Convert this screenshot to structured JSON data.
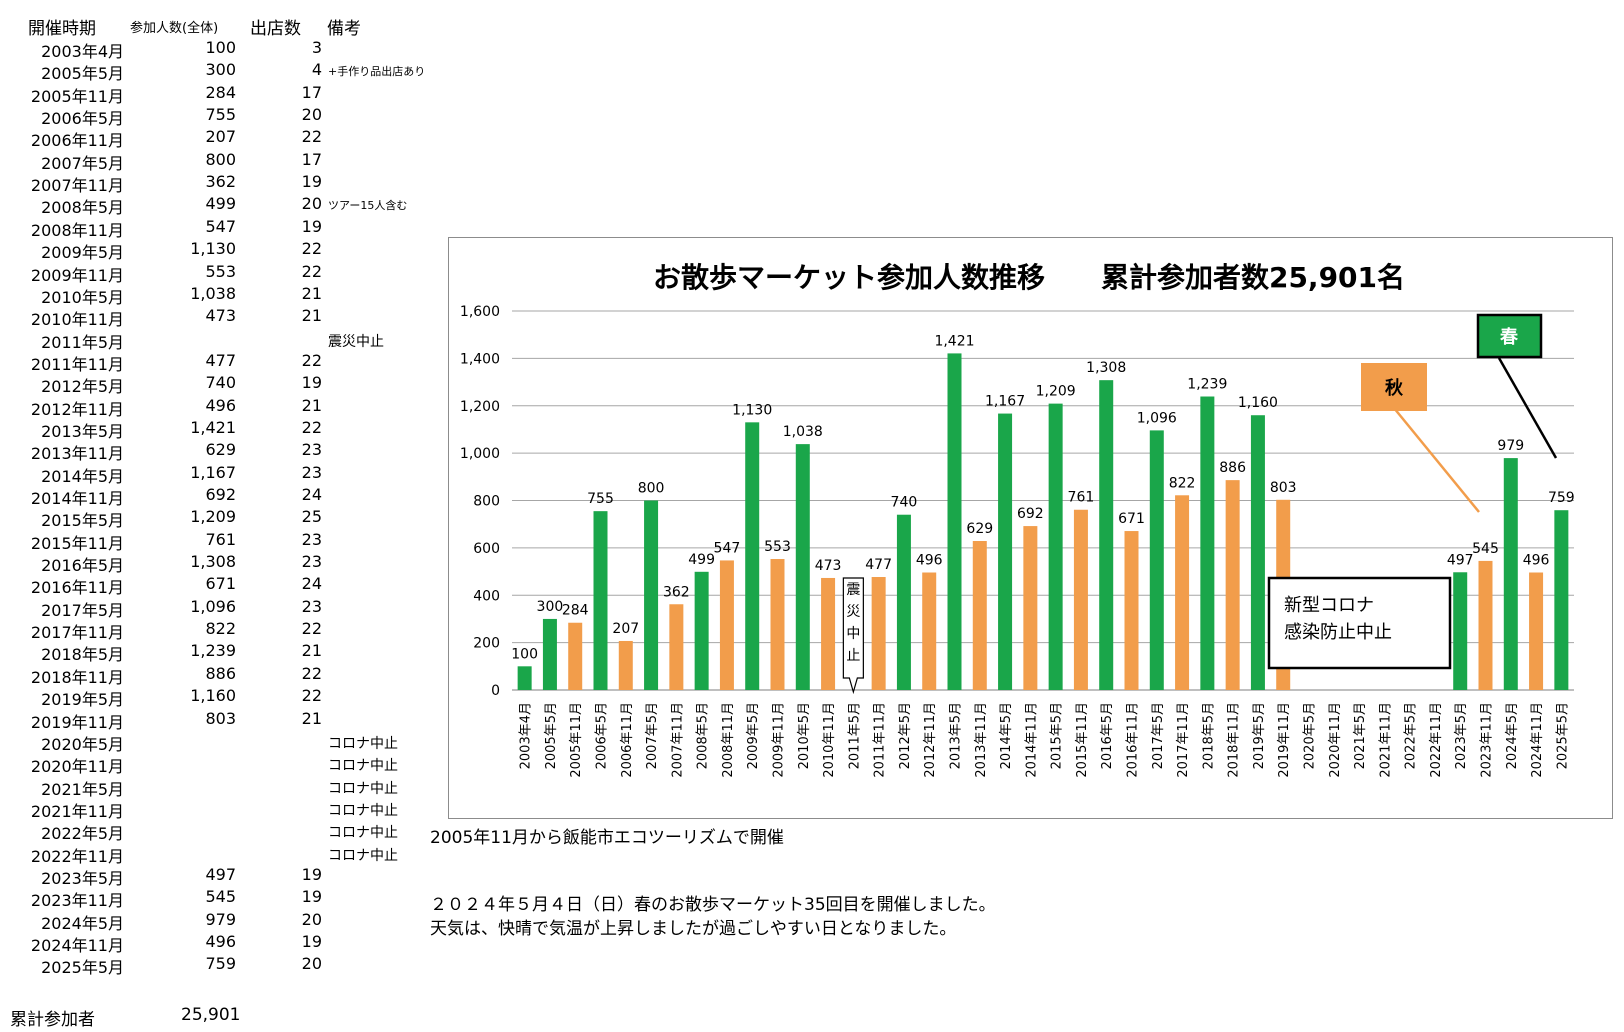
{
  "table": {
    "headers": {
      "period": "開催時期",
      "count": "参加人数(全体)",
      "stores": "出店数",
      "notes": "備考"
    },
    "rows": [
      {
        "date": "2003年4月",
        "count": "100",
        "stores": "3",
        "note": ""
      },
      {
        "date": "2005年5月",
        "count": "300",
        "stores": "4",
        "note": "+手作り品出店あり"
      },
      {
        "date": "2005年11月",
        "count": "284",
        "stores": "17",
        "note": ""
      },
      {
        "date": "2006年5月",
        "count": "755",
        "stores": "20",
        "note": ""
      },
      {
        "date": "2006年11月",
        "count": "207",
        "stores": "22",
        "note": ""
      },
      {
        "date": "2007年5月",
        "count": "800",
        "stores": "17",
        "note": ""
      },
      {
        "date": "2007年11月",
        "count": "362",
        "stores": "19",
        "note": ""
      },
      {
        "date": "2008年5月",
        "count": "499",
        "stores": "20",
        "note": "ツアー15人含む"
      },
      {
        "date": "2008年11月",
        "count": "547",
        "stores": "19",
        "note": ""
      },
      {
        "date": "2009年5月",
        "count": "1,130",
        "stores": "22",
        "note": ""
      },
      {
        "date": "2009年11月",
        "count": "553",
        "stores": "22",
        "note": ""
      },
      {
        "date": "2010年5月",
        "count": "1,038",
        "stores": "21",
        "note": ""
      },
      {
        "date": "2010年11月",
        "count": "473",
        "stores": "21",
        "note": ""
      },
      {
        "date": "2011年5月",
        "count": "",
        "stores": "",
        "note": "震災中止"
      },
      {
        "date": "2011年11月",
        "count": "477",
        "stores": "22",
        "note": ""
      },
      {
        "date": "2012年5月",
        "count": "740",
        "stores": "19",
        "note": ""
      },
      {
        "date": "2012年11月",
        "count": "496",
        "stores": "21",
        "note": ""
      },
      {
        "date": "2013年5月",
        "count": "1,421",
        "stores": "22",
        "note": ""
      },
      {
        "date": "2013年11月",
        "count": "629",
        "stores": "23",
        "note": ""
      },
      {
        "date": "2014年5月",
        "count": "1,167",
        "stores": "23",
        "note": ""
      },
      {
        "date": "2014年11月",
        "count": "692",
        "stores": "24",
        "note": ""
      },
      {
        "date": "2015年5月",
        "count": "1,209",
        "stores": "25",
        "note": ""
      },
      {
        "date": "2015年11月",
        "count": "761",
        "stores": "23",
        "note": ""
      },
      {
        "date": "2016年5月",
        "count": "1,308",
        "stores": "23",
        "note": ""
      },
      {
        "date": "2016年11月",
        "count": "671",
        "stores": "24",
        "note": ""
      },
      {
        "date": "2017年5月",
        "count": "1,096",
        "stores": "23",
        "note": ""
      },
      {
        "date": "2017年11月",
        "count": "822",
        "stores": "22",
        "note": ""
      },
      {
        "date": "2018年5月",
        "count": "1,239",
        "stores": "21",
        "note": ""
      },
      {
        "date": "2018年11月",
        "count": "886",
        "stores": "22",
        "note": ""
      },
      {
        "date": "2019年5月",
        "count": "1,160",
        "stores": "22",
        "note": ""
      },
      {
        "date": "2019年11月",
        "count": "803",
        "stores": "21",
        "note": ""
      },
      {
        "date": "2020年5月",
        "count": "",
        "stores": "",
        "note": "コロナ中止"
      },
      {
        "date": "2020年11月",
        "count": "",
        "stores": "",
        "note": "コロナ中止"
      },
      {
        "date": "2021年5月",
        "count": "",
        "stores": "",
        "note": "コロナ中止"
      },
      {
        "date": "2021年11月",
        "count": "",
        "stores": "",
        "note": "コロナ中止"
      },
      {
        "date": "2022年5月",
        "count": "",
        "stores": "",
        "note": "コロナ中止"
      },
      {
        "date": "2022年11月",
        "count": "",
        "stores": "",
        "note": "コロナ中止"
      },
      {
        "date": "2023年5月",
        "count": "497",
        "stores": "19",
        "note": ""
      },
      {
        "date": "2023年11月",
        "count": "545",
        "stores": "19",
        "note": ""
      },
      {
        "date": "2024年5月",
        "count": "979",
        "stores": "20",
        "note": ""
      },
      {
        "date": "2024年11月",
        "count": "496",
        "stores": "19",
        "note": ""
      },
      {
        "date": "2025年5月",
        "count": "759",
        "stores": "20",
        "note": ""
      }
    ],
    "total_label": "累計参加者",
    "total_value": "25,901"
  },
  "notes": {
    "line1": "2005年11月から飯能市エコツーリズムで開催",
    "line2": "２０２４年５月４日（日）春のお散歩マーケット35回目を開催しました。",
    "line3": "天気は、快晴で気温が上昇しましたが過ごしやすい日となりました。"
  },
  "colors": {
    "spring": "#1aa64a",
    "autumn": "#f29d4b",
    "grid": "#a6a6a6"
  },
  "chart_data": {
    "type": "bar",
    "title": "お散歩マーケット参加人数推移　　累計参加者数25,901名",
    "ylim": [
      0,
      1600
    ],
    "yticks": [
      "0",
      "200",
      "400",
      "600",
      "800",
      "1,000",
      "1,200",
      "1,400",
      "1,600"
    ],
    "categories": [
      "2003年4月",
      "2005年5月",
      "2005年11月",
      "2006年5月",
      "2006年11月",
      "2007年5月",
      "2007年11月",
      "2008年5月",
      "2008年11月",
      "2009年5月",
      "2009年11月",
      "2010年5月",
      "2010年11月",
      "2011年5月",
      "2011年11月",
      "2012年5月",
      "2012年11月",
      "2013年5月",
      "2013年11月",
      "2014年5月",
      "2014年11月",
      "2015年5月",
      "2015年11月",
      "2016年5月",
      "2016年11月",
      "2017年5月",
      "2017年11月",
      "2018年5月",
      "2018年11月",
      "2019年5月",
      "2019年11月",
      "2020年5月",
      "2020年11月",
      "2021年5月",
      "2021年11月",
      "2022年5月",
      "2022年11月",
      "2023年5月",
      "2023年11月",
      "2024年5月",
      "2024年11月",
      "2025年5月"
    ],
    "values": [
      100,
      300,
      284,
      755,
      207,
      800,
      362,
      499,
      547,
      1130,
      553,
      1038,
      473,
      null,
      477,
      740,
      496,
      1421,
      629,
      1167,
      692,
      1209,
      761,
      1308,
      671,
      1096,
      822,
      1239,
      886,
      1160,
      803,
      null,
      null,
      null,
      null,
      null,
      null,
      497,
      545,
      979,
      496,
      759
    ],
    "labels": [
      "100",
      "300",
      "284",
      "755",
      "207",
      "800",
      "362",
      "499",
      "547",
      "1,130",
      "553",
      "1,038",
      "473",
      "",
      "477",
      "740",
      "496",
      "1,421",
      "629",
      "1,167",
      "692",
      "1,209",
      "761",
      "1,308",
      "671",
      "1,096",
      "822",
      "1,239",
      "886",
      "1,160",
      "803",
      "",
      "",
      "",
      "",
      "",
      "",
      "497",
      "545",
      "979",
      "496",
      "759"
    ],
    "season": [
      "s",
      "s",
      "a",
      "s",
      "a",
      "s",
      "a",
      "s",
      "a",
      "s",
      "a",
      "s",
      "a",
      "s",
      "a",
      "s",
      "a",
      "s",
      "a",
      "s",
      "a",
      "s",
      "a",
      "s",
      "a",
      "s",
      "a",
      "s",
      "a",
      "s",
      "a",
      "s",
      "a",
      "s",
      "a",
      "s",
      "a",
      "s",
      "a",
      "s",
      "a",
      "s"
    ],
    "callouts": {
      "earthquake": [
        "震",
        "災",
        "中",
        "止"
      ],
      "covid": [
        "新型コロナ",
        "感染防止中止"
      ],
      "spring_label": "春",
      "autumn_label": "秋"
    }
  }
}
